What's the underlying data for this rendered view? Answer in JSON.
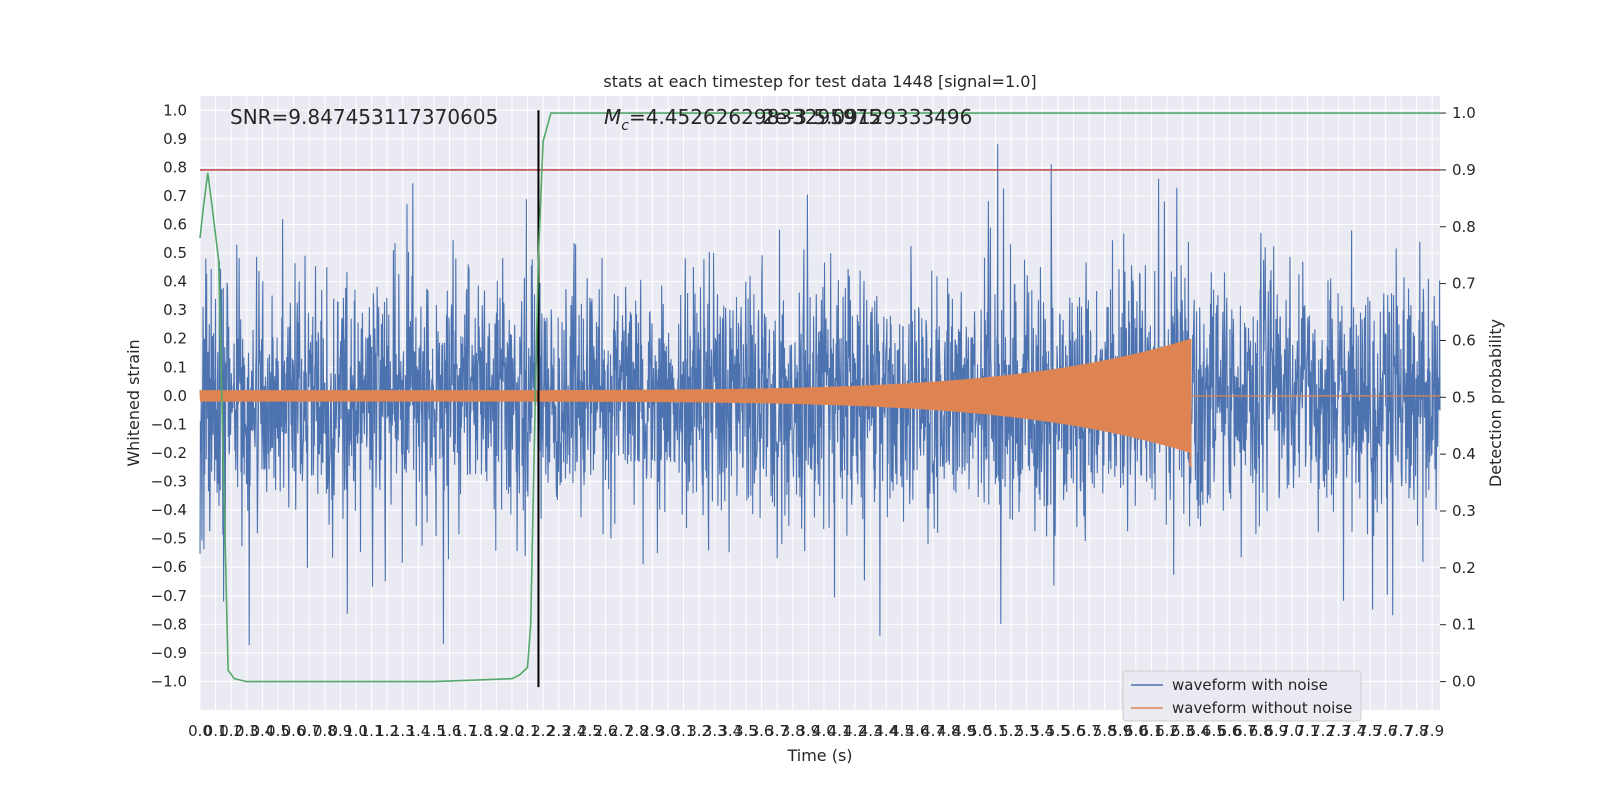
{
  "chart_data": {
    "type": "line",
    "title": "stats at each timestep for test data 1448 [signal=1.0]",
    "xlabel": "Time (s)",
    "ylabel": "Whitened strain",
    "ylabel_right": "Detection probability",
    "xlim": [
      0.0,
      7.95
    ],
    "ylim": [
      -1.1,
      1.05
    ],
    "ylim_right": [
      -0.05,
      1.03
    ],
    "x_ticks": [
      0.0,
      0.1,
      0.2,
      0.3,
      0.4,
      0.5,
      0.6,
      0.7,
      0.8,
      0.9,
      1.0,
      1.1,
      1.2,
      1.3,
      1.4,
      1.5,
      1.6,
      1.7,
      1.8,
      1.9,
      2.0,
      2.1,
      2.2,
      2.3,
      2.4,
      2.5,
      2.6,
      2.7,
      2.8,
      2.9,
      3.0,
      3.1,
      3.2,
      3.3,
      3.4,
      3.5,
      3.6,
      3.7,
      3.8,
      3.9,
      4.0,
      4.1,
      4.2,
      4.3,
      4.4,
      4.5,
      4.6,
      4.7,
      4.8,
      4.9,
      5.0,
      5.1,
      5.2,
      5.3,
      5.4,
      5.5,
      5.6,
      5.7,
      5.8,
      5.9,
      6.0,
      6.1,
      6.2,
      6.3,
      6.4,
      6.5,
      6.6,
      6.7,
      6.8,
      6.9,
      7.0,
      7.1,
      7.2,
      7.3,
      7.4,
      7.5,
      7.6,
      7.7,
      7.8,
      7.9
    ],
    "x_tick_labels": [
      "0.0",
      "0.1",
      "0.2",
      "0.3",
      "0.4",
      "0.5",
      "0.6",
      "0.7",
      "0.8",
      "0.9",
      "1.0",
      "1.1",
      "1.2",
      "1.3",
      "1.4",
      "1.5",
      "1.6",
      "1.7",
      "1.8",
      "1.9",
      "2.0",
      "2.1",
      "2.2",
      "2.3",
      "2.4",
      "2.5",
      "2.6",
      "2.7",
      "2.8",
      "2.9",
      "3.0",
      "3.1",
      "3.2",
      "3.3",
      "3.4",
      "3.5",
      "3.6",
      "3.7",
      "3.8",
      "3.9",
      "4.0",
      "4.1",
      "4.2",
      "4.3",
      "4.4",
      "4.5",
      "4.6",
      "4.7",
      "4.8",
      "4.9",
      "5.0",
      "5.1",
      "5.2",
      "5.3",
      "5.4",
      "5.5",
      "5.6",
      "5.7",
      "5.8",
      "5.9",
      "6.0",
      "6.1",
      "6.2",
      "6.3",
      "6.4",
      "6.5",
      "6.6",
      "6.7",
      "6.8",
      "6.9",
      "7.0",
      "7.1",
      "7.2",
      "7.3",
      "7.4",
      "7.5",
      "7.6",
      "7.7",
      "7.8",
      "7.9"
    ],
    "y_ticks": [
      1.0,
      0.9,
      0.8,
      0.7,
      0.6,
      0.5,
      0.4,
      0.3,
      0.2,
      0.1,
      0.0,
      -0.1,
      -0.2,
      -0.3,
      -0.4,
      -0.5,
      -0.6,
      -0.7,
      -0.8,
      -0.9,
      -1.0
    ],
    "y_tick_labels": [
      "1.0",
      "0.9",
      "0.8",
      "0.7",
      "0.6",
      "0.5",
      "0.4",
      "0.3",
      "0.2",
      "0.1",
      "0.0",
      "−0.1",
      "−0.2",
      "−0.3",
      "−0.4",
      "−0.5",
      "−0.6",
      "−0.7",
      "−0.8",
      "−0.9",
      "−1.0"
    ],
    "y_ticks_right": [
      1.0,
      0.9,
      0.8,
      0.7,
      0.6,
      0.5,
      0.4,
      0.3,
      0.2,
      0.1,
      0.0
    ],
    "y_tick_labels_right": [
      "1.0",
      "0.9",
      "0.8",
      "0.7",
      "0.6",
      "0.5",
      "0.4",
      "0.3",
      "0.2",
      "0.1",
      "0.0"
    ],
    "series": [
      {
        "name": "waveform with noise",
        "color": "#4c72b0",
        "kind": "noise",
        "amplitude_typical": 0.4,
        "amplitude_max": 1.0,
        "t_start": 0.0,
        "t_end": 7.95
      },
      {
        "name": "waveform without noise",
        "color": "#dd8452",
        "kind": "chirp",
        "amplitude_start": 0.02,
        "amplitude_peak": 0.2,
        "t_start": 0.0,
        "t_merger": 6.35,
        "t_end": 7.95,
        "ringdown_level": 0.0
      },
      {
        "name": "detection probability",
        "axis": "right",
        "color": "#55a868",
        "x": [
          0.0,
          0.02,
          0.05,
          0.08,
          0.12,
          0.18,
          0.22,
          0.3,
          0.5,
          1.0,
          1.5,
          2.0,
          2.05,
          2.1,
          2.12,
          2.15,
          2.17,
          2.2,
          2.25,
          7.95
        ],
        "y": [
          0.78,
          0.83,
          0.895,
          0.83,
          0.74,
          0.02,
          0.005,
          0.0,
          0.0,
          0.0,
          0.0,
          0.005,
          0.012,
          0.025,
          0.1,
          0.5,
          0.75,
          0.95,
          1.0,
          1.0
        ]
      }
    ],
    "threshold": {
      "value": 0.9,
      "axis": "right",
      "color": "#c44e52"
    },
    "detection_time": {
      "value": 2.17,
      "color": "#000000"
    },
    "annotations": {
      "snr": "SNR=9.847453117370605",
      "mc": "M_c=4.45262629833295975",
      "mc_overlap": "2e-3 5.09129333496"
    },
    "legend": {
      "placement": "lower-right",
      "items": [
        "waveform with noise",
        "waveform without noise"
      ]
    },
    "grid": true,
    "background": "#eaeaf2"
  }
}
